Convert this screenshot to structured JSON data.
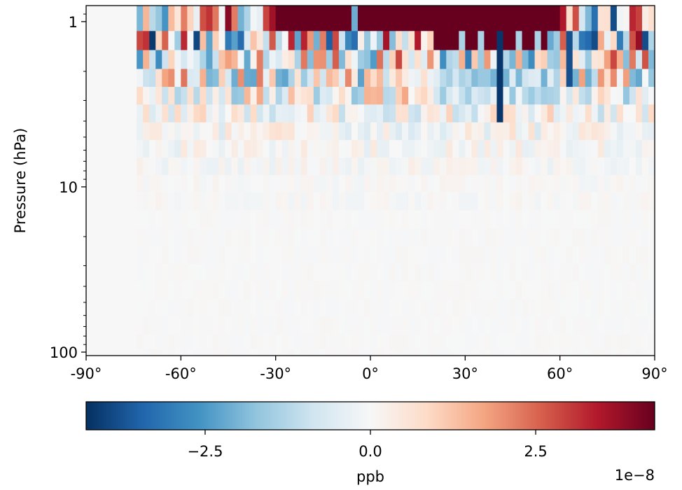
{
  "chart_data": {
    "type": "heatmap",
    "title": "",
    "xlabel": "",
    "ylabel": "Pressure (hPa)",
    "x_range": [
      -90,
      90
    ],
    "y_range": [
      105,
      0.8
    ],
    "y_scale": "log",
    "y_inverted": true,
    "x_ticks": [
      {
        "value": -90,
        "label": "-90°"
      },
      {
        "value": -60,
        "label": "-60°"
      },
      {
        "value": -30,
        "label": "-30°"
      },
      {
        "value": 0,
        "label": "0°"
      },
      {
        "value": 30,
        "label": "30°"
      },
      {
        "value": 60,
        "label": "60°"
      },
      {
        "value": 90,
        "label": "90°"
      }
    ],
    "y_ticks": [
      {
        "value": 1,
        "label": "1"
      },
      {
        "value": 10,
        "label": "10"
      },
      {
        "value": 100,
        "label": "100"
      }
    ],
    "pressure_levels_hpa": [
      1.0,
      1.3,
      1.7,
      2.2,
      2.8,
      3.6,
      4.6,
      5.9,
      7.5,
      9.6,
      12,
      16,
      20,
      26,
      33,
      42,
      54,
      69,
      88,
      105
    ],
    "latitude_step_deg": 2,
    "valid_latitude_range": [
      -74,
      90
    ],
    "values_ppb_e-8_summary": {
      "1.0_hPa": "saturated positive (>=+4.2) from about -30 to 60 latitude, alternating strongly positive/negative bands elsewhere",
      "1.3_to_1.7_hPa": "strong alternating signs across all latitudes, magnitudes up to 4.2",
      "2.2_to_3.6_hPa": "moderate values, negative bias near 20-60 latitude (about -1.5), mixed elsewhere",
      "4.6_to_7.5_hPa": "small values, |x| <= 0.5",
      "below_9.6_hPa": "near zero"
    },
    "colorbar": {
      "label": "ppb",
      "colormap": "RdBu_r",
      "vmin": -4.3,
      "vmax": 4.3,
      "ticks": [
        {
          "value": -2.5,
          "label": "−2.5"
        },
        {
          "value": 0.0,
          "label": "0.0"
        },
        {
          "value": 2.5,
          "label": "2.5"
        }
      ],
      "offset_label": "1e−8"
    }
  }
}
